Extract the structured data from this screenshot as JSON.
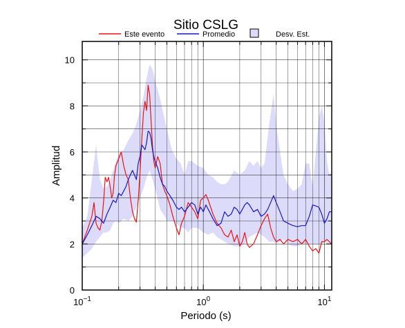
{
  "chart_data": {
    "type": "line",
    "title": "Sitio CSLG",
    "xlabel": "Periodo (s)",
    "ylabel": "Amplitud",
    "x_scale": "log",
    "xlim": [
      0.1,
      11.5
    ],
    "ylim": [
      0,
      10.8
    ],
    "grid": true,
    "legend_position": "top",
    "x_ticks": [
      {
        "value": 0.1,
        "base": "10",
        "exp": "−1"
      },
      {
        "value": 1,
        "base": "10",
        "exp": "0"
      },
      {
        "value": 10,
        "base": "10",
        "exp": "1"
      }
    ],
    "y_ticks": [
      0,
      2,
      4,
      6,
      8,
      10
    ],
    "colors": {
      "este": "#ee1111",
      "promedio": "#1515cc",
      "band": "#dcdcfa",
      "band_border": "#000000"
    },
    "legend": [
      {
        "key": "este",
        "label": "Este evento",
        "kind": "line"
      },
      {
        "key": "promedio",
        "label": "Promedio",
        "kind": "line"
      },
      {
        "key": "band",
        "label": "Desv. Est.",
        "kind": "box"
      }
    ],
    "series": [
      {
        "name": "Este evento",
        "key": "este",
        "x": [
          0.1,
          0.105,
          0.11,
          0.115,
          0.12,
          0.125,
          0.13,
          0.135,
          0.14,
          0.145,
          0.15,
          0.155,
          0.16,
          0.165,
          0.17,
          0.175,
          0.18,
          0.185,
          0.19,
          0.2,
          0.21,
          0.22,
          0.23,
          0.24,
          0.25,
          0.26,
          0.27,
          0.28,
          0.29,
          0.3,
          0.31,
          0.32,
          0.33,
          0.34,
          0.35,
          0.36,
          0.37,
          0.38,
          0.39,
          0.4,
          0.42,
          0.44,
          0.46,
          0.48,
          0.5,
          0.53,
          0.56,
          0.6,
          0.63,
          0.66,
          0.7,
          0.75,
          0.8,
          0.85,
          0.9,
          0.95,
          1.0,
          1.05,
          1.1,
          1.15,
          1.2,
          1.3,
          1.4,
          1.5,
          1.6,
          1.7,
          1.8,
          1.9,
          2.0,
          2.1,
          2.2,
          2.3,
          2.4,
          2.6,
          2.8,
          3.0,
          3.2,
          3.4,
          3.6,
          3.8,
          4.0,
          4.3,
          4.6,
          5.0,
          5.5,
          6.0,
          6.5,
          7.0,
          7.5,
          8.0,
          8.5,
          9.0,
          9.5,
          10.0,
          10.5,
          11.0,
          11.5
        ],
        "y": [
          2.0,
          2.3,
          2.6,
          2.9,
          3.2,
          3.8,
          2.9,
          2.7,
          2.6,
          3.0,
          3.8,
          4.9,
          4.7,
          4.9,
          4.5,
          4.0,
          4.2,
          5.0,
          5.4,
          5.7,
          6.0,
          5.4,
          5.0,
          4.8,
          4.0,
          3.4,
          3.1,
          2.95,
          3.9,
          5.1,
          6.5,
          7.7,
          8.2,
          7.8,
          8.9,
          8.5,
          7.4,
          6.3,
          5.6,
          5.3,
          5.8,
          5.5,
          4.6,
          4.3,
          4.1,
          3.7,
          3.2,
          2.7,
          2.4,
          2.9,
          3.2,
          3.8,
          3.6,
          3.4,
          3.1,
          3.9,
          4.0,
          4.15,
          3.9,
          3.6,
          3.3,
          2.9,
          2.7,
          2.4,
          2.3,
          2.6,
          2.1,
          2.4,
          1.9,
          2.1,
          2.5,
          2.0,
          1.85,
          2.0,
          2.4,
          2.8,
          3.1,
          3.3,
          2.7,
          2.3,
          2.1,
          2.2,
          2.0,
          2.2,
          2.1,
          2.2,
          2.0,
          2.2,
          1.9,
          1.7,
          1.8,
          1.6,
          2.1,
          2.1,
          2.2,
          2.1,
          2.0
        ]
      },
      {
        "name": "Promedio",
        "key": "promedio",
        "x": [
          0.1,
          0.11,
          0.12,
          0.13,
          0.14,
          0.15,
          0.16,
          0.17,
          0.18,
          0.19,
          0.2,
          0.21,
          0.22,
          0.23,
          0.24,
          0.25,
          0.26,
          0.27,
          0.28,
          0.29,
          0.3,
          0.31,
          0.32,
          0.33,
          0.34,
          0.35,
          0.36,
          0.37,
          0.38,
          0.39,
          0.4,
          0.42,
          0.44,
          0.46,
          0.48,
          0.5,
          0.53,
          0.56,
          0.6,
          0.63,
          0.66,
          0.7,
          0.75,
          0.8,
          0.85,
          0.9,
          0.95,
          1.0,
          1.05,
          1.1,
          1.15,
          1.2,
          1.3,
          1.4,
          1.5,
          1.6,
          1.7,
          1.8,
          1.9,
          2.0,
          2.1,
          2.2,
          2.3,
          2.4,
          2.6,
          2.8,
          3.0,
          3.2,
          3.4,
          3.6,
          3.8,
          4.0,
          4.3,
          4.6,
          5.0,
          5.5,
          6.0,
          6.5,
          7.0,
          7.5,
          8.0,
          8.5,
          9.0,
          9.5,
          10.0,
          10.5,
          11.0,
          11.5
        ],
        "y": [
          2.0,
          2.4,
          2.8,
          3.2,
          3.1,
          2.9,
          3.3,
          3.6,
          3.9,
          3.8,
          4.2,
          4.1,
          4.3,
          4.5,
          4.8,
          5.0,
          5.2,
          5.0,
          4.8,
          5.5,
          5.8,
          6.3,
          6.2,
          6.1,
          6.4,
          6.9,
          6.85,
          6.6,
          6.1,
          5.8,
          5.6,
          5.3,
          4.9,
          4.6,
          4.5,
          4.3,
          4.1,
          3.9,
          3.6,
          3.5,
          3.6,
          3.4,
          3.6,
          3.8,
          3.7,
          3.3,
          3.6,
          3.4,
          3.7,
          3.5,
          3.3,
          3.1,
          2.8,
          2.9,
          3.4,
          3.2,
          3.3,
          3.6,
          3.5,
          3.3,
          3.5,
          3.7,
          3.8,
          3.7,
          3.4,
          3.5,
          3.2,
          3.3,
          3.5,
          3.8,
          4.1,
          3.8,
          3.4,
          3.0,
          2.9,
          2.8,
          2.75,
          2.8,
          2.8,
          3.2,
          3.7,
          3.65,
          3.6,
          3.3,
          2.9,
          3.1,
          3.4,
          3.4
        ]
      }
    ],
    "std_band": {
      "name": "Desv. Est.",
      "x": [
        0.1,
        0.11,
        0.12,
        0.13,
        0.14,
        0.15,
        0.16,
        0.17,
        0.18,
        0.19,
        0.2,
        0.22,
        0.24,
        0.26,
        0.28,
        0.3,
        0.32,
        0.34,
        0.36,
        0.38,
        0.4,
        0.44,
        0.48,
        0.5,
        0.55,
        0.6,
        0.65,
        0.7,
        0.75,
        0.8,
        0.9,
        1.0,
        1.1,
        1.2,
        1.3,
        1.4,
        1.5,
        1.6,
        1.8,
        2.0,
        2.2,
        2.4,
        2.6,
        2.8,
        3.0,
        3.2,
        3.5,
        3.8,
        4.0,
        4.3,
        4.6,
        5.0,
        5.5,
        6.0,
        6.5,
        7.0,
        7.5,
        8.0,
        8.5,
        9.0,
        9.5,
        10.0,
        10.5,
        11.0,
        11.5
      ],
      "upper": [
        2.7,
        3.2,
        4.8,
        6.3,
        4.8,
        4.4,
        4.5,
        4.8,
        5.2,
        5.6,
        5.9,
        6.1,
        6.5,
        6.8,
        7.2,
        7.8,
        8.4,
        9.2,
        9.8,
        9.6,
        9.1,
        8.3,
        7.4,
        7.0,
        6.1,
        5.7,
        5.5,
        5.0,
        5.6,
        5.6,
        5.4,
        5.3,
        5.0,
        4.9,
        4.7,
        4.6,
        4.6,
        4.7,
        5.2,
        5.0,
        5.2,
        5.6,
        5.4,
        5.6,
        5.3,
        5.5,
        7.2,
        8.5,
        7.2,
        6.0,
        5.0,
        4.6,
        4.3,
        4.4,
        4.6,
        5.5,
        5.5,
        4.5,
        6.0,
        7.5,
        8.0,
        7.3,
        5.6,
        5.0,
        5.1
      ],
      "lower": [
        1.4,
        1.6,
        1.8,
        2.1,
        2.3,
        2.5,
        2.5,
        2.6,
        2.9,
        3.0,
        2.9,
        3.1,
        3.0,
        3.2,
        3.6,
        4.0,
        4.4,
        4.9,
        5.2,
        4.8,
        4.4,
        3.5,
        3.2,
        3.0,
        3.0,
        2.9,
        2.7,
        2.7,
        2.5,
        2.7,
        2.7,
        2.5,
        2.4,
        2.5,
        2.3,
        2.2,
        2.1,
        2.0,
        1.9,
        1.9,
        2.0,
        2.3,
        2.4,
        2.5,
        2.4,
        2.3,
        2.1,
        2.1,
        2.0,
        2.1,
        2.2,
        2.0,
        1.9,
        1.9,
        2.0,
        2.0,
        2.0,
        2.0,
        2.0,
        2.0,
        2.0,
        2.2,
        2.0,
        2.0,
        2.0
      ]
    }
  }
}
